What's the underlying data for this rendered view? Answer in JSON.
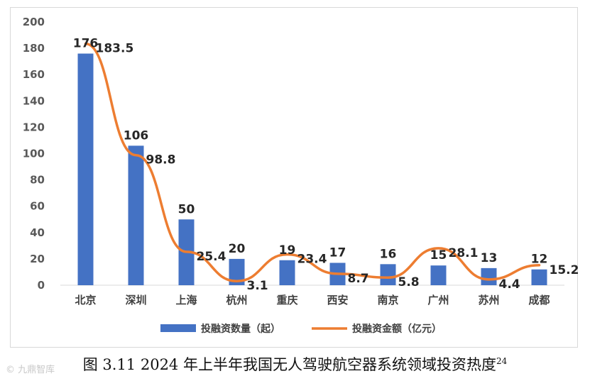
{
  "colors": {
    "bar": "#4472C4",
    "line": "#ED7D31",
    "text": "#262626"
  },
  "caption": {
    "text": "图 3.11 2024 年上半年我国无人驾驶航空器系统领域投资热度",
    "superscript": "24"
  },
  "watermark": {
    "text": "© 九鼎智库"
  },
  "chart_data": {
    "type": "bar",
    "title": "",
    "xlabel": "",
    "ylabel": "",
    "ylim": [
      0,
      200
    ],
    "yticks": [
      0,
      20,
      40,
      60,
      80,
      100,
      120,
      140,
      160,
      180,
      200
    ],
    "grid": false,
    "legend_position": "bottom",
    "categories": [
      "北京",
      "深圳",
      "上海",
      "杭州",
      "重庆",
      "西安",
      "南京",
      "广州",
      "苏州",
      "成都"
    ],
    "series": [
      {
        "name": "投融资数量（起）",
        "type": "bar",
        "values": [
          176,
          106,
          50,
          20,
          19,
          17,
          16,
          15,
          13,
          12
        ]
      },
      {
        "name": "投融资金额（亿元）",
        "type": "line",
        "values": [
          183.5,
          98.8,
          25.4,
          3.1,
          23.4,
          8.7,
          5.8,
          28.1,
          4.4,
          15.2
        ]
      }
    ]
  }
}
